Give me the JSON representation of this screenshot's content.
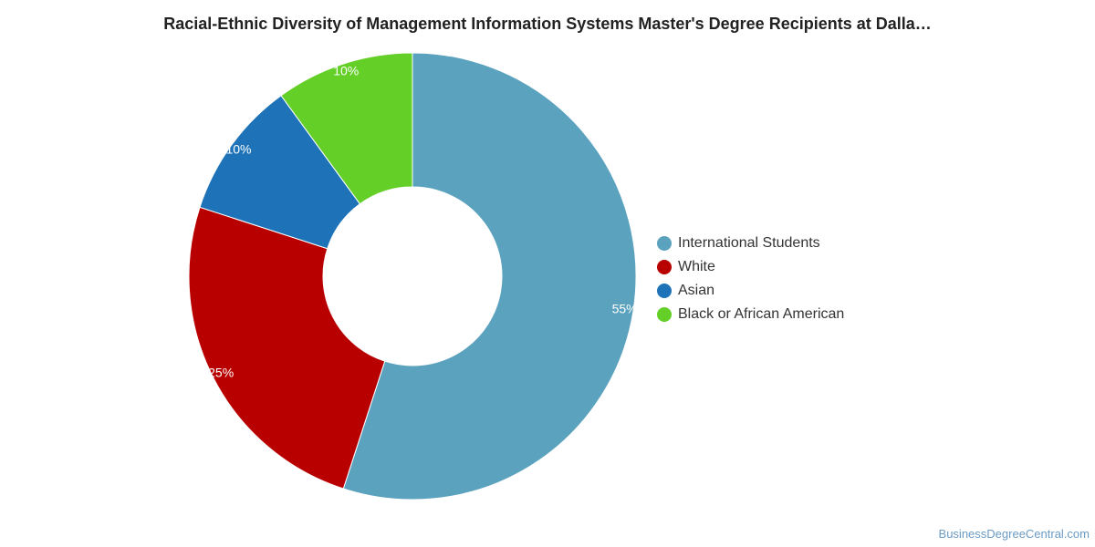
{
  "chart_data": {
    "type": "pie",
    "title": "Racial-Ethnic Diversity of Management Information Systems Master's Degree Recipients at Dalla…",
    "categories": [
      "International Students",
      "White",
      "Asian",
      "Black or African American"
    ],
    "values": [
      55,
      25,
      10,
      10
    ],
    "data_labels": [
      "55%",
      "25%",
      "10%",
      "10%"
    ],
    "colors": [
      "#5ba2bf",
      "#b90000",
      "#1e73b8",
      "#63cf27"
    ],
    "donut": true,
    "legend_position": "right"
  },
  "watermark": "BusinessDegreeCentral.com"
}
